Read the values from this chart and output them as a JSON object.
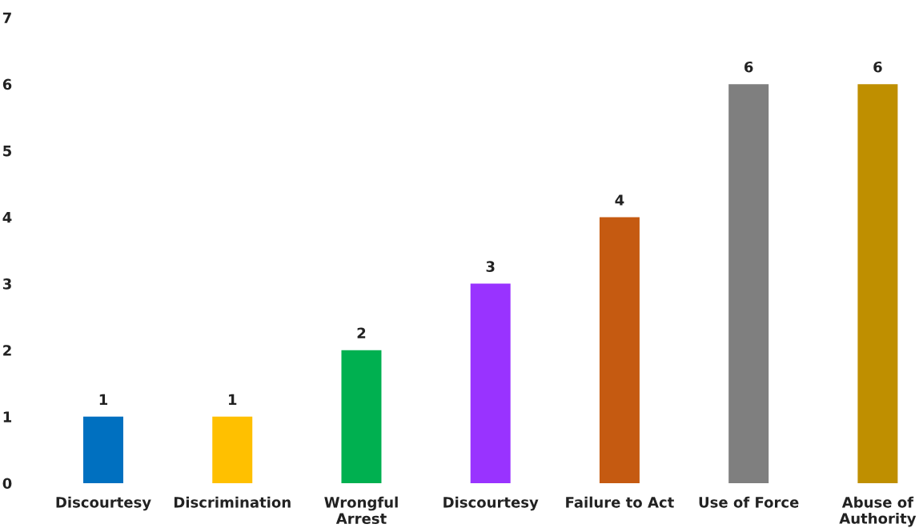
{
  "chart_data": {
    "type": "bar",
    "categories": [
      "Discourtesy",
      "Discrimination",
      "Wrongful\nArrest",
      "Discourtesy",
      "Failure to Act",
      "Use of Force",
      "Abuse of\nAuthority"
    ],
    "values": [
      1,
      1,
      2,
      3,
      4,
      6,
      6
    ],
    "colors": [
      "#0070c0",
      "#ffc000",
      "#00b050",
      "#9933ff",
      "#c55a11",
      "#7f7f7f",
      "#bf8f00"
    ],
    "ylim": [
      0,
      7
    ],
    "yticks": [
      0,
      1,
      2,
      3,
      4,
      5,
      6,
      7
    ],
    "data_labels": true,
    "grid": false,
    "legend": false
  }
}
